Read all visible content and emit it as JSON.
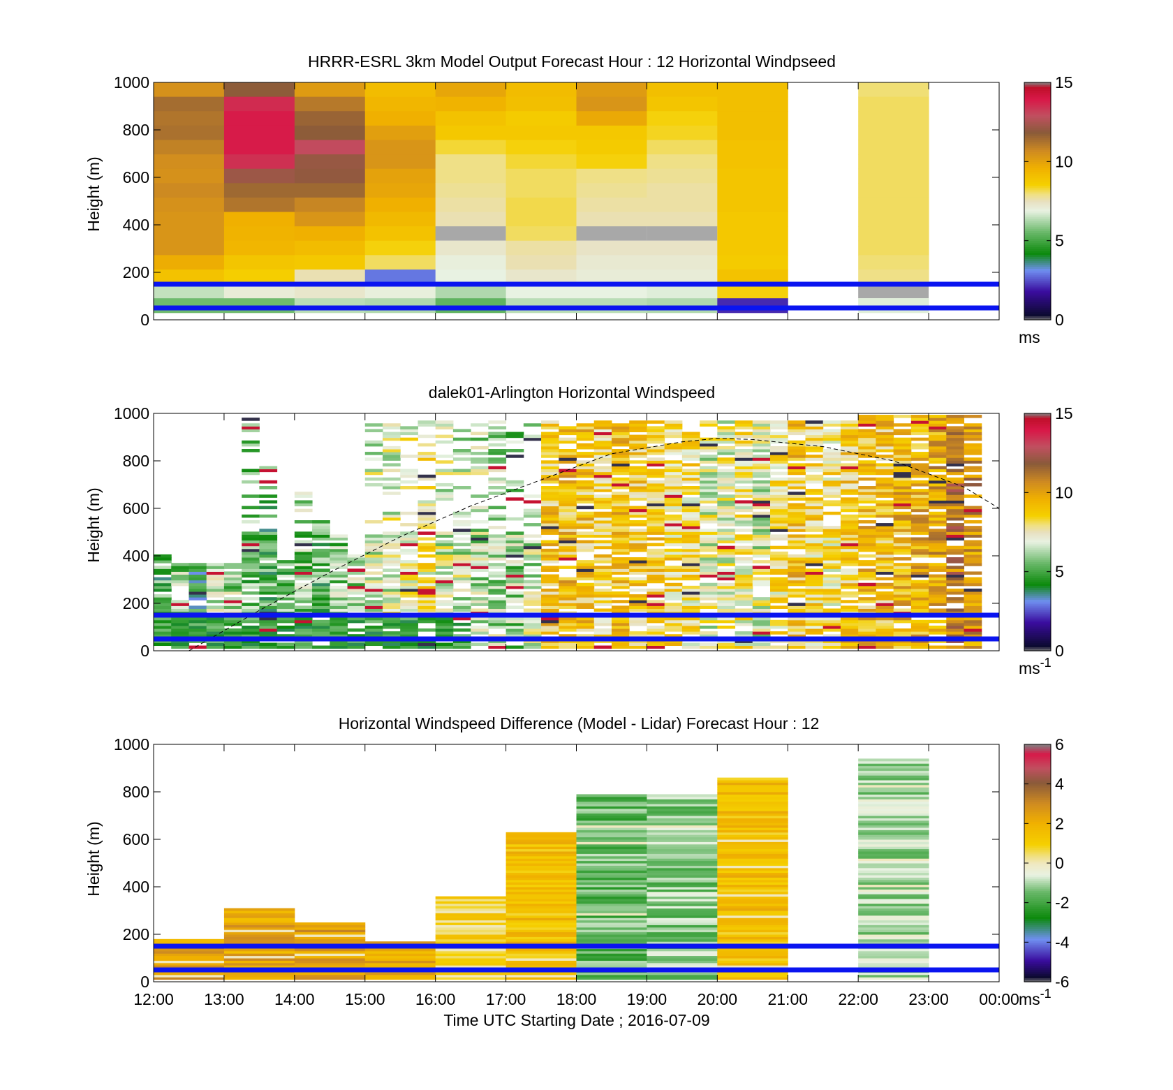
{
  "chart_data": [
    {
      "type": "heatmap",
      "title": "HRRR-ESRL 3km Model Output   Forecast Hour : 12 Horizontal Windpseed",
      "xlabel": "",
      "ylabel": "Height (m)",
      "xlim": [
        12,
        24
      ],
      "ylim": [
        0,
        1000
      ],
      "yticks": [
        "0",
        "200",
        "400",
        "600",
        "800",
        "1000"
      ],
      "grid": false,
      "colorbar": {
        "min": 0,
        "max": 15,
        "ticks": [
          "0",
          "5",
          "10",
          "15"
        ],
        "unit": "ms",
        "unit_sup": ""
      },
      "reference_lines_m": [
        50,
        150
      ],
      "reference_line_color": "#0a14f0",
      "columns": [
        {
          "hour": 12,
          "top": 1000,
          "bottom": 30,
          "values": [
            10.5,
            11.4,
            11.2,
            11.3,
            10.9,
            10.6,
            10.5,
            10.7,
            10.5,
            10.4,
            10.4,
            10.4,
            9.7,
            9.0,
            6.5,
            5.6
          ]
        },
        {
          "hour": 13,
          "top": 1000,
          "bottom": 30,
          "values": [
            11.8,
            13.6,
            13.9,
            13.9,
            13.9,
            13.5,
            12.2,
            11.5,
            11.2,
            9.6,
            9.5,
            9.4,
            8.9,
            8.6,
            7.1,
            5.6
          ]
        },
        {
          "hour": 14,
          "top": 1000,
          "bottom": 30,
          "values": [
            10.2,
            11.1,
            11.6,
            11.8,
            13.0,
            12.1,
            12.0,
            11.5,
            10.8,
            10.4,
            9.6,
            9.2,
            8.8,
            7.6,
            7.3,
            6.4
          ]
        },
        {
          "hour": 15,
          "top": 1000,
          "bottom": 30,
          "values": [
            9.2,
            9.4,
            9.6,
            10.1,
            10.4,
            10.4,
            10.0,
            9.9,
            9.6,
            9.3,
            9.0,
            8.5,
            8.1,
            2.9,
            7.0,
            6.3
          ]
        },
        {
          "hour": 16,
          "top": 1000,
          "bottom": 30,
          "values": [
            9.9,
            9.5,
            9.0,
            8.8,
            8.3,
            7.9,
            7.9,
            7.8,
            7.7,
            7.6,
            -1,
            7.3,
            7.0,
            6.9,
            6.3,
            5.4
          ]
        },
        {
          "hour": 17,
          "top": 1000,
          "bottom": 30,
          "values": [
            9.2,
            9.1,
            8.7,
            8.8,
            8.5,
            8.3,
            8.1,
            8.1,
            8.2,
            8.2,
            8.1,
            7.7,
            7.6,
            7.3,
            6.9,
            6.4
          ]
        },
        {
          "hour": 18,
          "top": 1000,
          "bottom": 30,
          "values": [
            10.2,
            10.4,
            9.8,
            8.8,
            8.7,
            8.5,
            7.9,
            7.8,
            7.7,
            7.6,
            -1,
            7.4,
            7.2,
            7.1,
            6.9,
            6.4
          ]
        },
        {
          "hour": 19,
          "top": 1000,
          "bottom": 30,
          "values": [
            9.1,
            8.9,
            8.5,
            8.4,
            8.1,
            7.9,
            7.8,
            7.7,
            7.7,
            7.6,
            -1,
            7.4,
            7.2,
            7.1,
            6.8,
            6.3
          ]
        },
        {
          "hour": 20,
          "top": 1000,
          "bottom": 30,
          "values": [
            9.1,
            9.1,
            9.1,
            9.1,
            9.0,
            9.0,
            8.9,
            8.9,
            8.9,
            8.8,
            8.8,
            8.8,
            8.7,
            9.0,
            8.5,
            2.1
          ]
        },
        {
          "hour": 22,
          "top": 1000,
          "bottom": 30,
          "values": [
            8.0,
            8.1,
            8.1,
            8.1,
            8.1,
            8.1,
            8.1,
            8.1,
            8.1,
            8.1,
            8.1,
            8.1,
            8.0,
            7.9,
            -1,
            6.8
          ]
        }
      ]
    },
    {
      "type": "heatmap",
      "title": "dalek01-Arlington  Horizontal Windspeed",
      "xlabel": "",
      "ylabel": "Height (m)",
      "xlim": [
        12,
        24
      ],
      "ylim": [
        0,
        1000
      ],
      "yticks": [
        "0",
        "200",
        "400",
        "600",
        "800",
        "1000"
      ],
      "grid": false,
      "colorbar": {
        "min": 0,
        "max": 15,
        "ticks": [
          "0",
          "5",
          "10",
          "15"
        ],
        "unit": "ms",
        "unit_sup": "-1"
      },
      "reference_lines_m": [
        50,
        150
      ],
      "reference_line_color": "#0a14f0",
      "boundary_layer_curve": {
        "x": [
          12.5,
          13.5,
          14.5,
          15.5,
          16.5,
          17.5,
          18.5,
          19.5,
          20.0,
          20.5,
          21.5,
          22.5,
          23.5,
          24.0
        ],
        "y": [
          0,
          170,
          330,
          480,
          610,
          720,
          830,
          880,
          895,
          890,
          860,
          800,
          690,
          600
        ]
      },
      "lidar_columns": [
        {
          "start": 12.0,
          "end": 12.25,
          "top": 400,
          "center": 5.2
        },
        {
          "start": 12.25,
          "end": 12.5,
          "top": 370,
          "center": 5.8
        },
        {
          "start": 12.5,
          "end": 12.75,
          "top": 360,
          "center": 4.6
        },
        {
          "start": 12.75,
          "end": 13.0,
          "top": 370,
          "center": 6.5
        },
        {
          "start": 13.0,
          "end": 13.25,
          "top": 360,
          "center": 6.1
        },
        {
          "start": 13.25,
          "end": 13.5,
          "top": 980,
          "center": 5.7
        },
        {
          "start": 13.5,
          "end": 13.75,
          "top": 780,
          "center": 5.2
        },
        {
          "start": 13.75,
          "end": 14.0,
          "top": 380,
          "center": 5.5
        },
        {
          "start": 14.0,
          "end": 14.25,
          "top": 660,
          "center": 5.8
        },
        {
          "start": 14.25,
          "end": 14.5,
          "top": 540,
          "center": 5.3
        },
        {
          "start": 14.5,
          "end": 14.75,
          "top": 480,
          "center": 5.9
        },
        {
          "start": 14.75,
          "end": 15.0,
          "top": 400,
          "center": 6.3
        },
        {
          "start": 15.0,
          "end": 15.25,
          "top": 960,
          "center": 6.8
        },
        {
          "start": 15.25,
          "end": 15.5,
          "top": 960,
          "center": 7.0
        },
        {
          "start": 15.5,
          "end": 15.75,
          "top": 960,
          "center": 7.4
        },
        {
          "start": 15.75,
          "end": 16.0,
          "top": 960,
          "center": 7.8
        },
        {
          "start": 16.0,
          "end": 16.25,
          "top": 960,
          "center": 6.9
        },
        {
          "start": 16.25,
          "end": 16.5,
          "top": 960,
          "center": 6.7
        },
        {
          "start": 16.5,
          "end": 16.75,
          "top": 960,
          "center": 6.4
        },
        {
          "start": 16.75,
          "end": 17.0,
          "top": 960,
          "center": 6.2
        },
        {
          "start": 17.0,
          "end": 17.25,
          "top": 960,
          "center": 6.0
        },
        {
          "start": 17.25,
          "end": 17.5,
          "top": 960,
          "center": 6.6
        },
        {
          "start": 17.5,
          "end": 17.75,
          "top": 960,
          "center": 8.8
        },
        {
          "start": 17.75,
          "end": 18.0,
          "top": 960,
          "center": 9.1
        },
        {
          "start": 18.0,
          "end": 18.25,
          "top": 960,
          "center": 8.9
        },
        {
          "start": 18.25,
          "end": 18.5,
          "top": 960,
          "center": 8.4
        },
        {
          "start": 18.5,
          "end": 18.75,
          "top": 960,
          "center": 9.0
        },
        {
          "start": 18.75,
          "end": 19.0,
          "top": 960,
          "center": 8.7
        },
        {
          "start": 19.0,
          "end": 19.25,
          "top": 960,
          "center": 8.5
        },
        {
          "start": 19.25,
          "end": 19.5,
          "top": 960,
          "center": 8.2
        },
        {
          "start": 19.5,
          "end": 19.75,
          "top": 960,
          "center": 8.0
        },
        {
          "start": 19.75,
          "end": 20.0,
          "top": 960,
          "center": 7.1
        },
        {
          "start": 20.0,
          "end": 20.25,
          "top": 960,
          "center": 7.3
        },
        {
          "start": 20.25,
          "end": 20.5,
          "top": 960,
          "center": 7.6
        },
        {
          "start": 20.5,
          "end": 20.75,
          "top": 960,
          "center": 6.9
        },
        {
          "start": 20.75,
          "end": 21.0,
          "top": 960,
          "center": 8.1
        },
        {
          "start": 21.0,
          "end": 21.25,
          "top": 960,
          "center": 9.0
        },
        {
          "start": 21.25,
          "end": 21.5,
          "top": 960,
          "center": 8.2
        },
        {
          "start": 21.5,
          "end": 21.75,
          "top": 960,
          "center": 7.9
        },
        {
          "start": 21.75,
          "end": 22.0,
          "top": 960,
          "center": 8.6
        },
        {
          "start": 22.0,
          "end": 22.25,
          "top": 990,
          "center": 9.2
        },
        {
          "start": 22.25,
          "end": 22.5,
          "top": 990,
          "center": 8.9
        },
        {
          "start": 22.5,
          "end": 22.75,
          "top": 990,
          "center": 9.4
        },
        {
          "start": 22.75,
          "end": 23.0,
          "top": 990,
          "center": 9.6
        },
        {
          "start": 23.0,
          "end": 23.25,
          "top": 990,
          "center": 9.9
        },
        {
          "start": 23.25,
          "end": 23.5,
          "top": 990,
          "center": 11.0
        },
        {
          "start": 23.5,
          "end": 23.75,
          "top": 990,
          "center": 10.4
        }
      ]
    },
    {
      "type": "heatmap",
      "title": "Horizontal Windspeed Difference (Model - Lidar) Forecast Hour : 12",
      "xlabel": "Time UTC  Starting Date ; 2016-07-09",
      "ylabel": "Height (m)",
      "xlim": [
        12,
        24
      ],
      "ylim": [
        0,
        1000
      ],
      "xticks": [
        "12:00",
        "13:00",
        "14:00",
        "15:00",
        "16:00",
        "17:00",
        "18:00",
        "19:00",
        "20:00",
        "21:00",
        "22:00",
        "23:00",
        "00:00"
      ],
      "yticks": [
        "0",
        "200",
        "400",
        "600",
        "800",
        "1000"
      ],
      "grid": false,
      "colorbar": {
        "min": -6,
        "max": 6,
        "ticks": [
          "-6",
          "-4",
          "-2",
          "0",
          "2",
          "4",
          "6"
        ],
        "unit": "ms",
        "unit_sup": "-1"
      },
      "reference_lines_m": [
        50,
        150
      ],
      "reference_line_color": "#0a14f0",
      "columns": [
        {
          "hour": 12,
          "top": 180,
          "bottom": 10,
          "center": 2.4
        },
        {
          "hour": 13,
          "top": 310,
          "bottom": 10,
          "center": 2.3
        },
        {
          "hour": 14,
          "top": 245,
          "bottom": 10,
          "center": 2.6
        },
        {
          "hour": 15,
          "top": 170,
          "bottom": 10,
          "center": 2.3
        },
        {
          "hour": 16,
          "top": 360,
          "bottom": 10,
          "center": 0.8
        },
        {
          "hour": 17,
          "top": 630,
          "bottom": 10,
          "center": 1.5
        },
        {
          "hour": 18,
          "top": 790,
          "bottom": 10,
          "center": -1.6
        },
        {
          "hour": 19,
          "top": 790,
          "bottom": 10,
          "center": -1.3
        },
        {
          "hour": 20,
          "top": 860,
          "bottom": 10,
          "center": 1.5
        },
        {
          "hour": 22,
          "top": 940,
          "bottom": 10,
          "center": -1.0
        }
      ]
    }
  ]
}
